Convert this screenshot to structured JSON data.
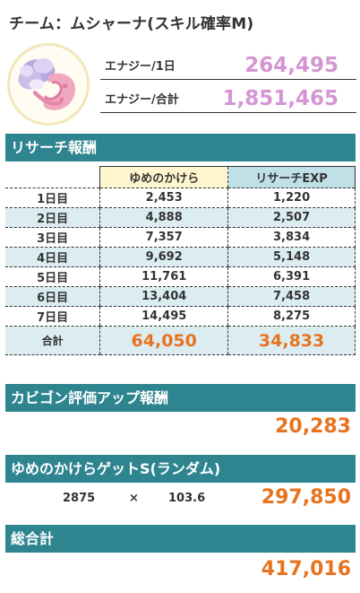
{
  "team_title": "チーム：ムシャーナ(スキル確率M)",
  "avatar": {
    "icon": "musharna-icon"
  },
  "energy": [
    {
      "label": "エナジー/1日",
      "value": "264,495"
    },
    {
      "label": "エナジー/合計",
      "value": "1,851,465"
    }
  ],
  "research": {
    "title": "リサーチ報酬",
    "columns": [
      "",
      "ゆめのかけら",
      "リサーチEXP"
    ],
    "rows": [
      {
        "day": "1日目",
        "shards": "2,453",
        "exp": "1,220"
      },
      {
        "day": "2日目",
        "shards": "4,888",
        "exp": "2,507"
      },
      {
        "day": "3日目",
        "shards": "7,357",
        "exp": "3,834"
      },
      {
        "day": "4日目",
        "shards": "9,692",
        "exp": "5,148"
      },
      {
        "day": "5日目",
        "shards": "11,761",
        "exp": "6,391"
      },
      {
        "day": "6日目",
        "shards": "13,404",
        "exp": "7,458"
      },
      {
        "day": "7日目",
        "shards": "14,495",
        "exp": "8,275"
      }
    ],
    "total": {
      "label": "合計",
      "shards": "64,050",
      "exp": "34,833"
    }
  },
  "snorlax": {
    "title": "カビゴン評価アップ報酬",
    "value": "20,283"
  },
  "shard_get": {
    "title": "ゆめのかけらゲットS(ランダム)",
    "base": "2875",
    "operator": "×",
    "multiplier": "103.6",
    "value": "297,850"
  },
  "grand_total": {
    "title": "総合計",
    "value": "417,016"
  },
  "colors": {
    "header": "#2e8590",
    "accent": "#e8731f",
    "energy": "#d496d2",
    "row_alt": "#dcedf2",
    "shard_col": "#fff6cf",
    "exp_col": "#c0e0e8"
  }
}
